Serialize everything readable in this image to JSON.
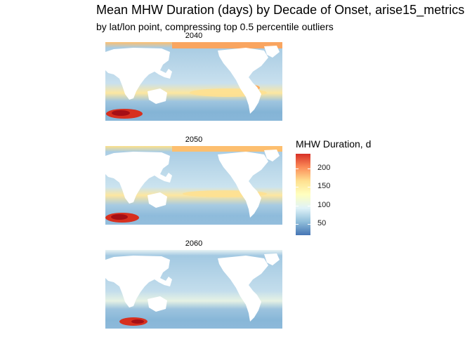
{
  "title": "Mean MHW Duration (days) by Decade of Onset,  arise15_metrics",
  "subtitle": "by lat/lon point, compressing top  0.5  percentile outliers",
  "panels": [
    {
      "label": "2040"
    },
    {
      "label": "2050"
    },
    {
      "label": "2060"
    }
  ],
  "legend": {
    "title": "MHW Duration, d",
    "ticks": [
      {
        "label": "200",
        "value": 200
      },
      {
        "label": "150",
        "value": 150
      },
      {
        "label": "100",
        "value": 100
      },
      {
        "label": "50",
        "value": 50
      }
    ],
    "range": [
      20,
      240
    ],
    "colors": [
      "#4575b4",
      "#91bfdb",
      "#e0f3f8",
      "#ffffbf",
      "#fee090",
      "#fc8d59",
      "#d73027"
    ]
  },
  "colors": {
    "ocean_base": "#b7d3e8",
    "ocean_warm_band": "#fee8a4",
    "ocean_hot": "#e04a2e",
    "land": "#ffffff"
  }
}
